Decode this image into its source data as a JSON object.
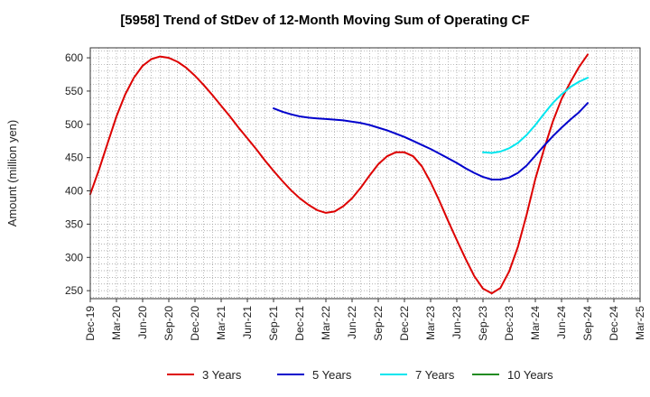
{
  "chart_data": {
    "type": "line",
    "title": "[5958]  Trend of StDev of 12-Month Moving Sum of Operating CF",
    "ylabel": "Amount (million yen)",
    "xlabel": "",
    "ylim": [
      238,
      615
    ],
    "y_ticks": [
      250,
      300,
      350,
      400,
      450,
      500,
      550,
      600
    ],
    "x_ticks": [
      "Dec-19",
      "Mar-20",
      "Jun-20",
      "Sep-20",
      "Dec-20",
      "Mar-21",
      "Jun-21",
      "Sep-21",
      "Dec-21",
      "Mar-22",
      "Jun-22",
      "Sep-22",
      "Dec-22",
      "Mar-23",
      "Jun-23",
      "Sep-23",
      "Dec-23",
      "Mar-24",
      "Jun-24",
      "Sep-24",
      "Dec-24",
      "Mar-25"
    ],
    "grid": true,
    "legend_position": "bottom",
    "series": [
      {
        "name": "3 Years",
        "color": "#dd0000",
        "points": [
          [
            "Dec-19",
            395
          ],
          [
            "Jan-20",
            432
          ],
          [
            "Feb-20",
            472
          ],
          [
            "Mar-20",
            512
          ],
          [
            "Apr-20",
            545
          ],
          [
            "May-20",
            570
          ],
          [
            "Jun-20",
            588
          ],
          [
            "Jul-20",
            598
          ],
          [
            "Aug-20",
            602
          ],
          [
            "Sep-20",
            600
          ],
          [
            "Oct-20",
            594
          ],
          [
            "Nov-20",
            585
          ],
          [
            "Dec-20",
            573
          ],
          [
            "Jan-21",
            559
          ],
          [
            "Feb-21",
            544
          ],
          [
            "Mar-21",
            528
          ],
          [
            "Apr-21",
            512
          ],
          [
            "May-21",
            495
          ],
          [
            "Jun-21",
            479
          ],
          [
            "Jul-21",
            463
          ],
          [
            "Aug-21",
            446
          ],
          [
            "Sep-21",
            430
          ],
          [
            "Oct-21",
            415
          ],
          [
            "Nov-21",
            401
          ],
          [
            "Dec-21",
            389
          ],
          [
            "Jan-22",
            379
          ],
          [
            "Feb-22",
            371
          ],
          [
            "Mar-22",
            367
          ],
          [
            "Apr-22",
            369
          ],
          [
            "May-22",
            377
          ],
          [
            "Jun-22",
            389
          ],
          [
            "Jul-22",
            405
          ],
          [
            "Aug-22",
            423
          ],
          [
            "Sep-22",
            440
          ],
          [
            "Oct-22",
            452
          ],
          [
            "Nov-22",
            458
          ],
          [
            "Dec-22",
            458
          ],
          [
            "Jan-23",
            452
          ],
          [
            "Feb-23",
            437
          ],
          [
            "Mar-23",
            413
          ],
          [
            "Apr-23",
            385
          ],
          [
            "May-23",
            355
          ],
          [
            "Jun-23",
            326
          ],
          [
            "Jul-23",
            298
          ],
          [
            "Aug-23",
            272
          ],
          [
            "Sep-23",
            253
          ],
          [
            "Oct-23",
            246
          ],
          [
            "Nov-23",
            254
          ],
          [
            "Dec-23",
            279
          ],
          [
            "Jan-24",
            316
          ],
          [
            "Feb-24",
            364
          ],
          [
            "Mar-24",
            418
          ],
          [
            "Apr-24",
            463
          ],
          [
            "May-24",
            504
          ],
          [
            "Jun-24",
            538
          ],
          [
            "Jul-24",
            563
          ],
          [
            "Aug-24",
            586
          ],
          [
            "Sep-24",
            605
          ]
        ]
      },
      {
        "name": "5 Years",
        "color": "#0000cc",
        "points": [
          [
            "Sep-21",
            524
          ],
          [
            "Oct-21",
            519
          ],
          [
            "Nov-21",
            515
          ],
          [
            "Dec-21",
            512
          ],
          [
            "Jan-22",
            510
          ],
          [
            "Feb-22",
            509
          ],
          [
            "Mar-22",
            508
          ],
          [
            "Apr-22",
            507
          ],
          [
            "May-22",
            506
          ],
          [
            "Jun-22",
            504
          ],
          [
            "Jul-22",
            502
          ],
          [
            "Aug-22",
            499
          ],
          [
            "Sep-22",
            495
          ],
          [
            "Oct-22",
            491
          ],
          [
            "Nov-22",
            486
          ],
          [
            "Dec-22",
            481
          ],
          [
            "Jan-23",
            475
          ],
          [
            "Feb-23",
            469
          ],
          [
            "Mar-23",
            463
          ],
          [
            "Apr-23",
            456
          ],
          [
            "May-23",
            449
          ],
          [
            "Jun-23",
            442
          ],
          [
            "Jul-23",
            434
          ],
          [
            "Aug-23",
            427
          ],
          [
            "Sep-23",
            421
          ],
          [
            "Oct-23",
            417
          ],
          [
            "Nov-23",
            417
          ],
          [
            "Dec-23",
            420
          ],
          [
            "Jan-24",
            427
          ],
          [
            "Feb-24",
            438
          ],
          [
            "Mar-24",
            453
          ],
          [
            "Apr-24",
            468
          ],
          [
            "May-24",
            482
          ],
          [
            "Jun-24",
            495
          ],
          [
            "Jul-24",
            507
          ],
          [
            "Aug-24",
            518
          ],
          [
            "Sep-24",
            532
          ]
        ]
      },
      {
        "name": "7 Years",
        "color": "#00e5ee",
        "points": [
          [
            "Sep-23",
            458
          ],
          [
            "Oct-23",
            457
          ],
          [
            "Nov-23",
            459
          ],
          [
            "Dec-23",
            464
          ],
          [
            "Jan-24",
            472
          ],
          [
            "Feb-24",
            484
          ],
          [
            "Mar-24",
            499
          ],
          [
            "Apr-24",
            516
          ],
          [
            "May-24",
            532
          ],
          [
            "Jun-24",
            545
          ],
          [
            "Jul-24",
            556
          ],
          [
            "Aug-24",
            564
          ],
          [
            "Sep-24",
            570
          ]
        ]
      },
      {
        "name": "10 Years",
        "color": "#228b22",
        "points": []
      }
    ]
  }
}
